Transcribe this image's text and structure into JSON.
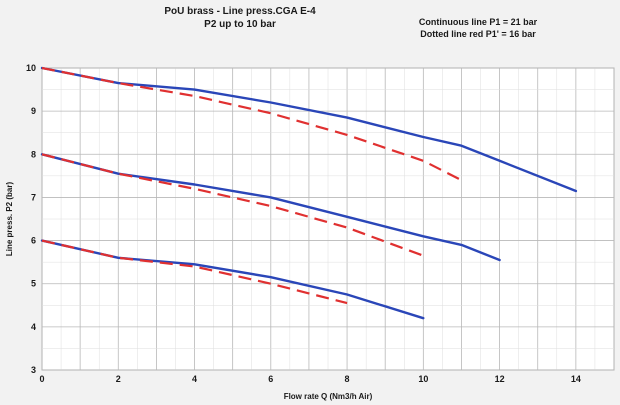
{
  "chart_data": {
    "type": "line",
    "title": "PoU brass  - Line press.CGA E-4",
    "subtitle": "P2 up to 10 bar",
    "notes": [
      "Continuous line P1 = 21 bar",
      "Dotted line red  P1' = 16 bar"
    ],
    "xlabel": "Flow rate Q (Nm3/h Air)",
    "ylabel": "Line press. P2 (bar)",
    "xlim": [
      0,
      15
    ],
    "ylim": [
      3,
      10
    ],
    "xticks": [
      0,
      2,
      4,
      6,
      8,
      10,
      12,
      14
    ],
    "yticks": [
      3,
      4,
      5,
      6,
      7,
      8,
      9,
      10
    ],
    "grid": true,
    "series": [
      {
        "style": "solid",
        "color": "#2a46b8",
        "x": [
          0,
          2,
          4,
          6,
          8,
          10,
          11,
          12,
          14
        ],
        "y": [
          10.0,
          9.65,
          9.5,
          9.2,
          8.85,
          8.4,
          8.2,
          7.85,
          7.15
        ]
      },
      {
        "style": "dashed",
        "color": "#e03030",
        "x": [
          0,
          2,
          4,
          6,
          8,
          10,
          11
        ],
        "y": [
          10.0,
          9.65,
          9.35,
          8.95,
          8.45,
          7.85,
          7.4
        ]
      },
      {
        "style": "solid",
        "color": "#2a46b8",
        "x": [
          0,
          2,
          4,
          6,
          8,
          10,
          11,
          12
        ],
        "y": [
          8.0,
          7.55,
          7.3,
          7.0,
          6.55,
          6.1,
          5.9,
          5.55
        ]
      },
      {
        "style": "dashed",
        "color": "#e03030",
        "x": [
          0,
          2,
          4,
          6,
          8,
          10
        ],
        "y": [
          8.0,
          7.55,
          7.2,
          6.8,
          6.3,
          5.65
        ]
      },
      {
        "style": "solid",
        "color": "#2a46b8",
        "x": [
          0,
          2,
          4,
          6,
          8,
          10
        ],
        "y": [
          6.0,
          5.6,
          5.45,
          5.15,
          4.75,
          4.2
        ]
      },
      {
        "style": "dashed",
        "color": "#e03030",
        "x": [
          0,
          2,
          4,
          6,
          8
        ],
        "y": [
          6.0,
          5.6,
          5.4,
          5.0,
          4.55
        ]
      }
    ]
  }
}
